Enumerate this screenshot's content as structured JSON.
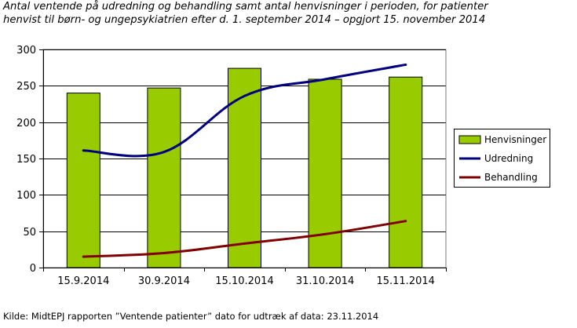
{
  "header": {
    "title_line1": "Antal ventende på udredning og behandling samt antal henvisninger i perioden, for patienter",
    "title_line2": "henvist til børn- og ungepsykiatrien efter d. 1. september 2014 – opgjort 15. november 2014"
  },
  "footer": {
    "source": "Kilde: MidtEPJ rapporten ”Ventende patienter” dato for udtræk af data: 23.11.2014"
  },
  "chart_data": {
    "type": "bar",
    "title": "Antal ventende på udredning og behandling samt antal henvisninger i perioden, for patienter henvist til børn- og ungepsykiatrien efter d. 1. september 2014 – opgjort 15. november 2014",
    "xlabel": "",
    "ylabel": "",
    "categories": [
      "15.9.2014",
      "30.9.2014",
      "15.10.2014",
      "31.10.2014",
      "15.11.2014"
    ],
    "ylim": [
      0,
      300
    ],
    "yticks": [
      0,
      50,
      100,
      150,
      200,
      250,
      300
    ],
    "ytick_labels": [
      "0",
      "50",
      "100",
      "150",
      "200",
      "250",
      "300"
    ],
    "grid": true,
    "legend_position": "right",
    "series": [
      {
        "name": "Henvisninger",
        "type": "bar",
        "color": "#99cc00",
        "values": [
          240,
          247,
          274,
          259,
          262
        ]
      },
      {
        "name": "Udredning",
        "type": "line",
        "color": "#000080",
        "values": [
          161,
          159,
          236,
          259,
          279
        ]
      },
      {
        "name": "Behandling",
        "type": "line",
        "color": "#800000",
        "values": [
          15,
          20,
          33,
          46,
          64
        ]
      }
    ]
  }
}
